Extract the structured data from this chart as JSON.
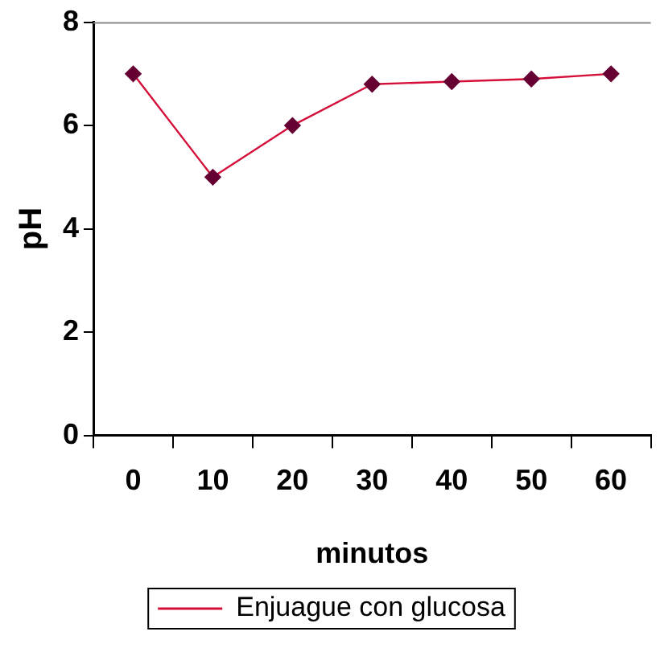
{
  "chart_data": {
    "type": "line",
    "xlabel": "minutos",
    "ylabel": "pH",
    "categories": [
      "0",
      "10",
      "20",
      "30",
      "40",
      "50",
      "60"
    ],
    "series": [
      {
        "name": "Enjuague con glucosa",
        "color": "#d4103a",
        "values": [
          7,
          5,
          6,
          6.8,
          6.85,
          6.9,
          7
        ]
      }
    ],
    "ylim": [
      0,
      8
    ],
    "yticks": [
      0,
      2,
      4,
      6,
      8
    ],
    "grid": false,
    "legend": "bottom",
    "marker": "diamond",
    "line_style": "solid"
  }
}
